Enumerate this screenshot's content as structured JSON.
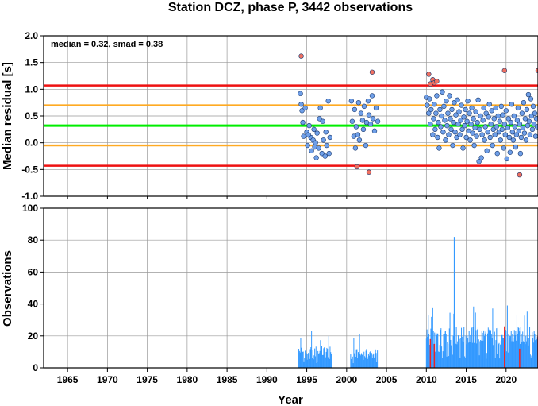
{
  "colors": {
    "point_normal": "#6f9fe8",
    "point_outlier": "#f07060",
    "bar_normal": "#3399ff",
    "bar_outlier": "#ee2222",
    "median_line": "#00ee00",
    "smad_line": "#ffaa22",
    "limit_line": "#ee1111",
    "grid": "#999999"
  },
  "chart_data": [
    {
      "type": "scatter",
      "title": "Station DCZ, phase P, 3442 observations",
      "xlabel": "",
      "ylabel": "Median residual [s]",
      "annotation": "median = 0.32, smad = 0.38",
      "xlim": [
        1962,
        2024
      ],
      "ylim": [
        -1.0,
        2.0
      ],
      "xticks": [
        1965,
        1970,
        1975,
        1980,
        1985,
        1990,
        1995,
        2000,
        2005,
        2010,
        2015,
        2020
      ],
      "yticks": [
        "-1.0",
        "-0.5",
        "0.0",
        "0.5",
        "1.0",
        "1.5",
        "2.0"
      ],
      "grid": true,
      "reference_lines": [
        {
          "name": "median",
          "y": 0.32,
          "color": "#00ee00"
        },
        {
          "name": "median+smad",
          "y": 0.7,
          "color": "#ffaa22"
        },
        {
          "name": "median-smad",
          "y": -0.05,
          "color": "#ffaa22"
        },
        {
          "name": "upper limit",
          "y": 1.07,
          "color": "#ee1111"
        },
        {
          "name": "lower limit",
          "y": -0.43,
          "color": "#ee1111"
        }
      ],
      "series": [
        {
          "category": "normal",
          "points": [
            [
              1994.2,
              0.92
            ],
            [
              1994.3,
              0.72
            ],
            [
              1994.4,
              0.6
            ],
            [
              1994.5,
              0.38
            ],
            [
              1994.6,
              0.12
            ],
            [
              1994.8,
              0.65
            ],
            [
              1995.0,
              0.2
            ],
            [
              1995.1,
              -0.05
            ],
            [
              1995.3,
              0.32
            ],
            [
              1995.5,
              0.1
            ],
            [
              1995.6,
              -0.15
            ],
            [
              1995.8,
              0.05
            ],
            [
              1995.9,
              0.25
            ],
            [
              1996.0,
              -0.08
            ],
            [
              1996.2,
              -0.28
            ],
            [
              1996.3,
              0.18
            ],
            [
              1996.5,
              -0.1
            ],
            [
              1996.6,
              0.45
            ],
            [
              1996.7,
              0.65
            ],
            [
              1996.9,
              -0.2
            ],
            [
              1997.0,
              0.4
            ],
            [
              1997.1,
              0.05
            ],
            [
              1997.3,
              -0.25
            ],
            [
              1997.4,
              0.2
            ],
            [
              1997.5,
              -0.05
            ],
            [
              1997.7,
              0.78
            ],
            [
              1997.8,
              -0.2
            ],
            [
              1997.9,
              0.1
            ],
            [
              1996.1,
              0.0
            ],
            [
              1995.2,
              0.15
            ],
            [
              2000.6,
              0.78
            ],
            [
              2000.7,
              0.4
            ],
            [
              2000.9,
              0.12
            ],
            [
              2001.0,
              0.62
            ],
            [
              2001.1,
              -0.1
            ],
            [
              2001.2,
              0.3
            ],
            [
              2001.4,
              0.15
            ],
            [
              2001.5,
              0.75
            ],
            [
              2001.6,
              0.05
            ],
            [
              2001.8,
              0.55
            ],
            [
              2002.0,
              0.42
            ],
            [
              2002.1,
              0.25
            ],
            [
              2002.2,
              0.68
            ],
            [
              2002.4,
              -0.05
            ],
            [
              2002.5,
              0.38
            ],
            [
              2002.7,
              0.78
            ],
            [
              2002.8,
              0.52
            ],
            [
              2003.0,
              0.35
            ],
            [
              2003.2,
              0.88
            ],
            [
              2003.3,
              0.45
            ],
            [
              2003.5,
              0.22
            ],
            [
              2003.7,
              0.65
            ],
            [
              2003.9,
              0.4
            ],
            [
              2010.0,
              0.85
            ],
            [
              2010.1,
              0.7
            ],
            [
              2010.3,
              0.55
            ],
            [
              2010.4,
              0.82
            ],
            [
              2010.5,
              0.35
            ],
            [
              2010.6,
              0.62
            ],
            [
              2010.8,
              0.15
            ],
            [
              2010.9,
              0.45
            ],
            [
              2011.0,
              0.72
            ],
            [
              2011.1,
              0.25
            ],
            [
              2011.2,
              0.55
            ],
            [
              2011.3,
              0.88
            ],
            [
              2011.4,
              0.1
            ],
            [
              2011.5,
              0.38
            ],
            [
              2011.6,
              -0.1
            ],
            [
              2011.7,
              0.62
            ],
            [
              2011.8,
              0.3
            ],
            [
              2011.9,
              0.5
            ],
            [
              2012.0,
              0.95
            ],
            [
              2012.1,
              0.2
            ],
            [
              2012.2,
              0.68
            ],
            [
              2012.3,
              0.42
            ],
            [
              2012.4,
              0.05
            ],
            [
              2012.5,
              0.78
            ],
            [
              2012.6,
              0.32
            ],
            [
              2012.7,
              0.55
            ],
            [
              2012.8,
              0.15
            ],
            [
              2012.9,
              0.88
            ],
            [
              2013.0,
              0.45
            ],
            [
              2013.1,
              0.25
            ],
            [
              2013.2,
              0.62
            ],
            [
              2013.3,
              -0.05
            ],
            [
              2013.4,
              0.38
            ],
            [
              2013.5,
              0.75
            ],
            [
              2013.6,
              0.2
            ],
            [
              2013.7,
              0.52
            ],
            [
              2013.8,
              0.1
            ],
            [
              2013.9,
              0.8
            ],
            [
              2014.0,
              0.35
            ],
            [
              2014.1,
              0.58
            ],
            [
              2014.2,
              0.15
            ],
            [
              2014.3,
              0.42
            ],
            [
              2014.4,
              0.7
            ],
            [
              2014.5,
              0.25
            ],
            [
              2014.6,
              -0.1
            ],
            [
              2014.7,
              0.48
            ],
            [
              2014.8,
              0.32
            ],
            [
              2014.9,
              0.62
            ],
            [
              2015.0,
              0.1
            ],
            [
              2015.1,
              0.4
            ],
            [
              2015.2,
              0.78
            ],
            [
              2015.3,
              0.22
            ],
            [
              2015.4,
              0.55
            ],
            [
              2015.5,
              0.05
            ],
            [
              2015.6,
              0.35
            ],
            [
              2015.7,
              0.65
            ],
            [
              2015.8,
              0.18
            ],
            [
              2015.9,
              0.45
            ],
            [
              2016.0,
              -0.05
            ],
            [
              2016.1,
              0.28
            ],
            [
              2016.2,
              0.58
            ],
            [
              2016.3,
              0.12
            ],
            [
              2016.4,
              0.38
            ],
            [
              2016.5,
              0.8
            ],
            [
              2016.6,
              -0.35
            ],
            [
              2016.7,
              0.25
            ],
            [
              2016.8,
              0.5
            ],
            [
              2016.9,
              -0.28
            ],
            [
              2017.0,
              0.15
            ],
            [
              2017.1,
              0.42
            ],
            [
              2017.2,
              0.65
            ],
            [
              2017.3,
              0.05
            ],
            [
              2017.4,
              0.3
            ],
            [
              2017.5,
              0.55
            ],
            [
              2017.6,
              -0.15
            ],
            [
              2017.7,
              0.2
            ],
            [
              2017.8,
              0.48
            ],
            [
              2017.9,
              0.72
            ],
            [
              2018.0,
              0.1
            ],
            [
              2018.1,
              0.35
            ],
            [
              2018.2,
              0.6
            ],
            [
              2018.3,
              -0.05
            ],
            [
              2018.4,
              0.25
            ],
            [
              2018.5,
              0.45
            ],
            [
              2018.6,
              0.15
            ],
            [
              2018.7,
              0.65
            ],
            [
              2018.8,
              0.3
            ],
            [
              2018.9,
              -0.2
            ],
            [
              2019.0,
              0.5
            ],
            [
              2019.1,
              0.2
            ],
            [
              2019.2,
              0.4
            ],
            [
              2019.3,
              0.05
            ],
            [
              2019.4,
              0.68
            ],
            [
              2019.5,
              0.25
            ],
            [
              2019.6,
              0.52
            ],
            [
              2019.7,
              -0.1
            ],
            [
              2019.8,
              0.35
            ],
            [
              2019.9,
              0.15
            ],
            [
              2020.0,
              0.6
            ],
            [
              2020.1,
              -0.3
            ],
            [
              2020.2,
              0.28
            ],
            [
              2020.3,
              0.45
            ],
            [
              2020.4,
              0.1
            ],
            [
              2020.5,
              -0.18
            ],
            [
              2020.6,
              0.38
            ],
            [
              2020.7,
              0.72
            ],
            [
              2020.8,
              0.2
            ],
            [
              2020.9,
              0.05
            ],
            [
              2021.0,
              0.5
            ],
            [
              2021.1,
              0.3
            ],
            [
              2021.2,
              -0.08
            ],
            [
              2021.3,
              0.15
            ],
            [
              2021.4,
              0.42
            ],
            [
              2021.5,
              0.65
            ],
            [
              2021.6,
              0.22
            ],
            [
              2021.7,
              0.35
            ],
            [
              2021.8,
              -0.2
            ],
            [
              2021.9,
              0.1
            ],
            [
              2022.0,
              0.55
            ],
            [
              2022.1,
              0.28
            ],
            [
              2022.2,
              0.75
            ],
            [
              2022.3,
              0.18
            ],
            [
              2022.4,
              0.45
            ],
            [
              2022.5,
              0.05
            ],
            [
              2022.6,
              0.62
            ],
            [
              2022.7,
              0.32
            ],
            [
              2022.8,
              0.9
            ],
            [
              2022.9,
              0.4
            ],
            [
              2023.0,
              0.15
            ],
            [
              2023.1,
              0.82
            ],
            [
              2023.2,
              0.5
            ],
            [
              2023.3,
              0.25
            ],
            [
              2023.4,
              0.68
            ],
            [
              2023.5,
              0.35
            ],
            [
              2023.6,
              0.55
            ],
            [
              2023.7,
              0.12
            ],
            [
              2023.8,
              0.45
            ],
            [
              2023.9,
              0.3
            ]
          ]
        },
        {
          "category": "outlier",
          "points": [
            [
              1994.3,
              1.62
            ],
            [
              2001.3,
              -0.45
            ],
            [
              2002.8,
              -0.55
            ],
            [
              2003.2,
              1.32
            ],
            [
              2010.3,
              1.28
            ],
            [
              2010.5,
              1.1
            ],
            [
              2010.8,
              1.18
            ],
            [
              2011.0,
              1.12
            ],
            [
              2011.3,
              1.15
            ],
            [
              2019.8,
              1.35
            ],
            [
              2021.7,
              -0.6
            ],
            [
              2024.0,
              1.35
            ]
          ]
        }
      ]
    },
    {
      "type": "bar",
      "title": "",
      "xlabel": "Year",
      "ylabel": "Observations",
      "xlim": [
        1962,
        2024
      ],
      "ylim": [
        0,
        100
      ],
      "xticks": [
        1965,
        1970,
        1975,
        1980,
        1985,
        1990,
        1995,
        2000,
        2005,
        2010,
        2015,
        2020
      ],
      "yticks": [
        "0",
        "20",
        "40",
        "60",
        "80",
        "100"
      ],
      "grid": true,
      "peak": {
        "x": 2013.5,
        "value": 82
      },
      "segments": [
        {
          "start": 1994.0,
          "end": 1998.1,
          "base": 6,
          "amp": 8
        },
        {
          "start": 2000.5,
          "end": 2003.9,
          "base": 5,
          "amp": 7
        },
        {
          "start": 2010.0,
          "end": 2024.0,
          "base": 14,
          "amp": 12
        }
      ],
      "red_bars": [
        [
          2010.5,
          18
        ],
        [
          2011.0,
          15
        ],
        [
          2019.8,
          26
        ],
        [
          2021.7,
          12
        ],
        [
          2024.0,
          20
        ]
      ]
    }
  ]
}
